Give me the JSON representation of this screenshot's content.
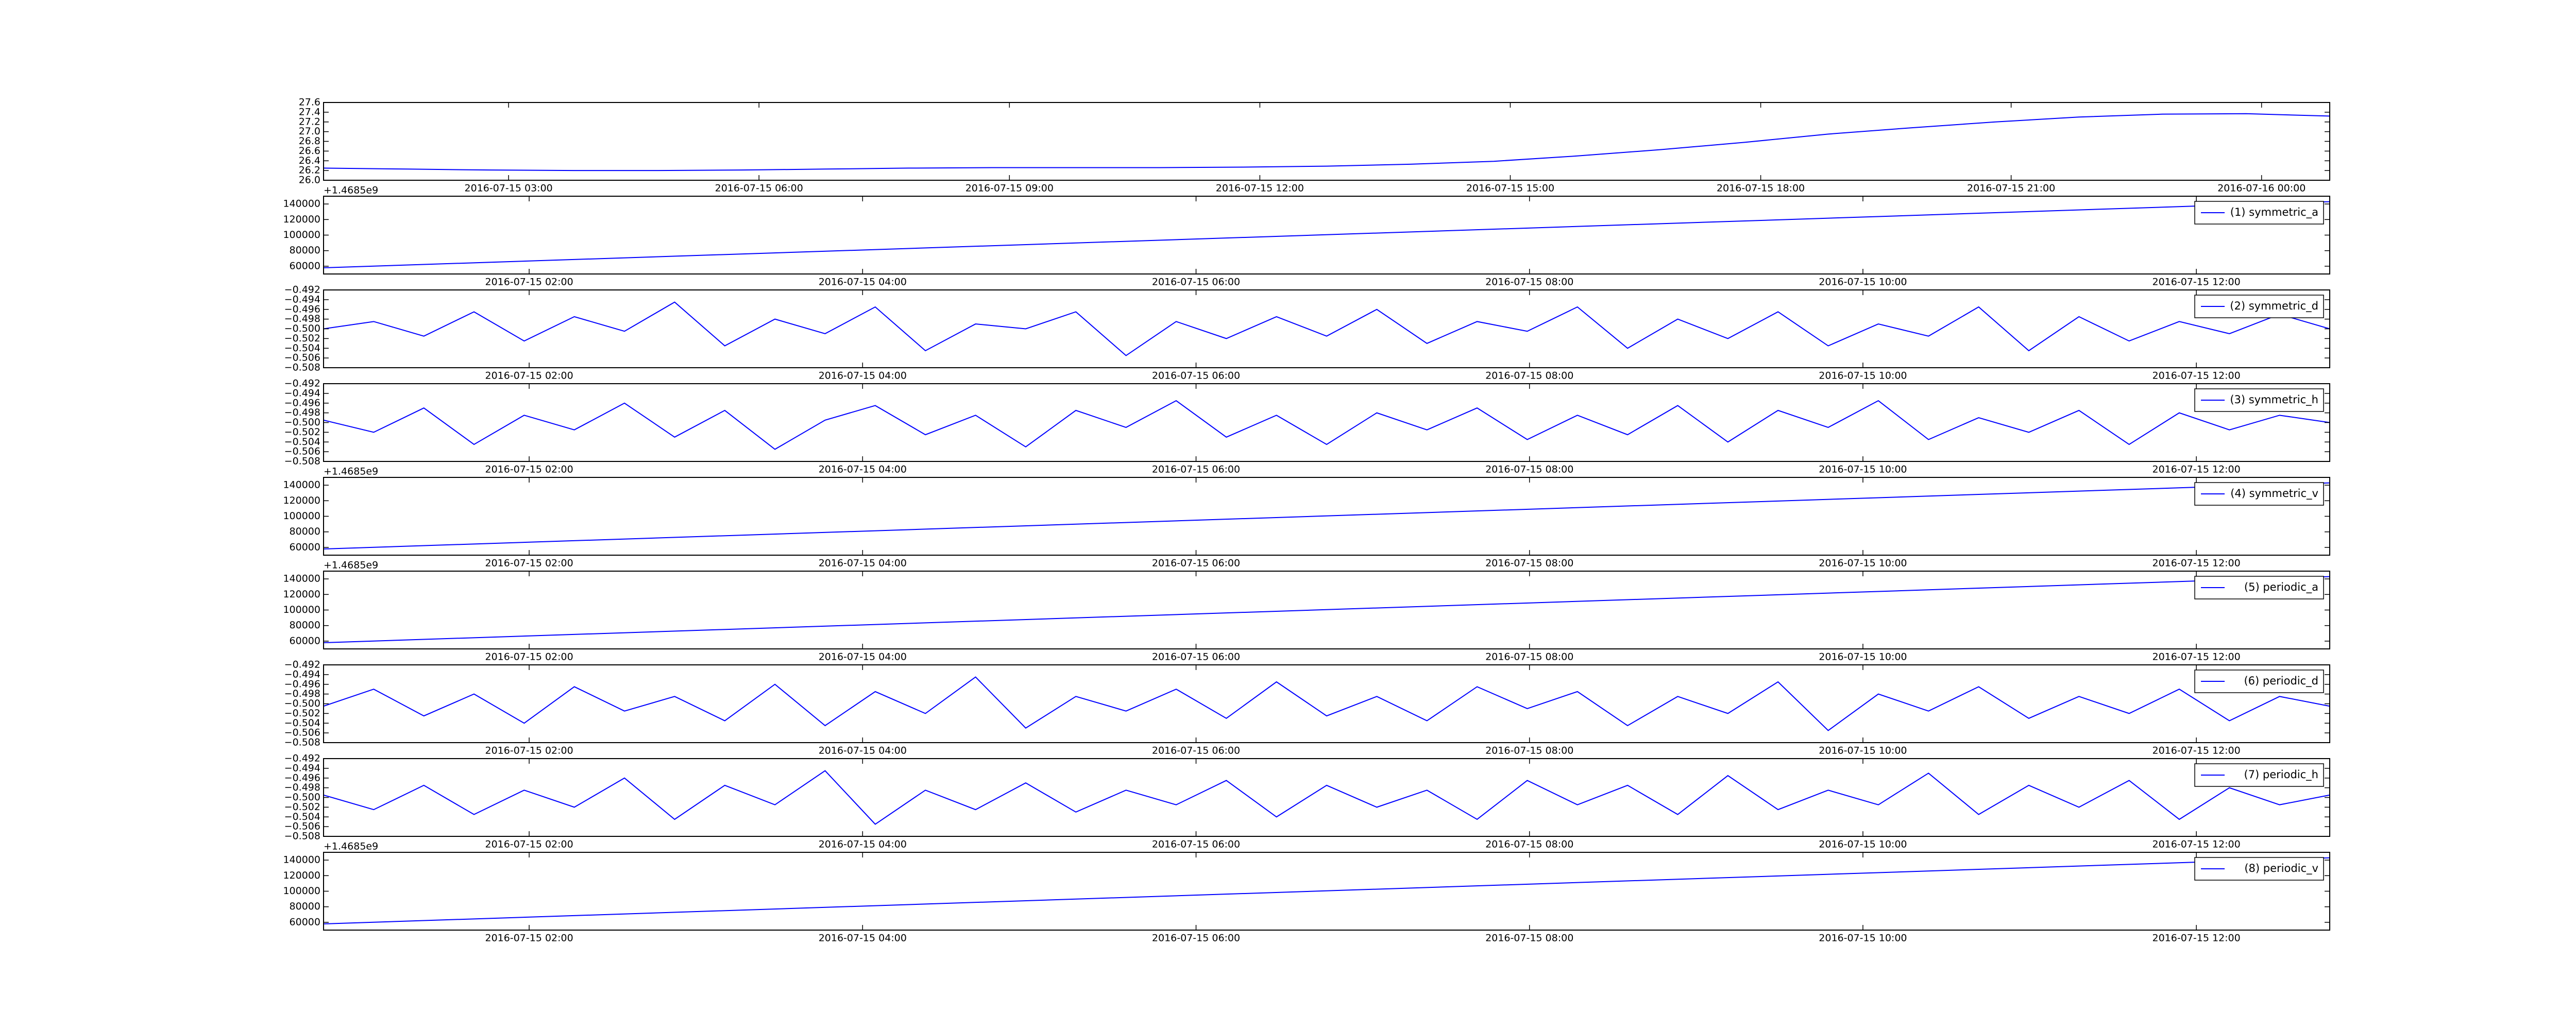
{
  "chart_data": [
    {
      "type": "line",
      "offset_text": "+1.4685e9",
      "x": [
        1468543620,
        1468547225,
        1468550830,
        1468554435,
        1468558040,
        1468561645,
        1468565250,
        1468568855,
        1468572460,
        1468576065,
        1468579670,
        1468583275,
        1468586880,
        1468590485,
        1468594090,
        1468597695,
        1468601300,
        1468604905,
        1468608510,
        1468612115,
        1468615720,
        1468619325,
        1468622930,
        1468626535,
        1468630140
      ],
      "series": [
        {
          "color": "#0000ff",
          "values": [
            26.25,
            26.23,
            26.21,
            26.2,
            26.2,
            26.21,
            26.23,
            26.25,
            26.26,
            26.26,
            26.26,
            26.27,
            26.29,
            26.33,
            26.39,
            26.5,
            26.63,
            26.78,
            26.95,
            27.08,
            27.2,
            27.3,
            27.36,
            27.37,
            27.32
          ]
        }
      ],
      "xlim": [
        1468543620,
        1468630140
      ],
      "xticks": [
        {
          "value": 1468551600,
          "label": "2016-07-15 03:00"
        },
        {
          "value": 1468562400,
          "label": "2016-07-15 06:00"
        },
        {
          "value": 1468573200,
          "label": "2016-07-15 09:00"
        },
        {
          "value": 1468584000,
          "label": "2016-07-15 12:00"
        },
        {
          "value": 1468594800,
          "label": "2016-07-15 15:00"
        },
        {
          "value": 1468605600,
          "label": "2016-07-15 18:00"
        },
        {
          "value": 1468616400,
          "label": "2016-07-15 21:00"
        },
        {
          "value": 1468627200,
          "label": "2016-07-16 00:00"
        }
      ],
      "ylim": [
        26.0,
        27.6
      ],
      "yticks": [
        {
          "value": 26.0,
          "label": "26.0"
        },
        26.2,
        26.4,
        26.6,
        26.8,
        {
          "value": 27.0,
          "label": "27.0"
        },
        27.2,
        27.4,
        27.6
      ]
    },
    {
      "type": "line",
      "legend": "upper right",
      "x": [
        1468543560,
        1468586880
      ],
      "series": [
        {
          "name": "(1) symmetric_a",
          "color": "#0000ff",
          "values": [
            58000,
            143000
          ]
        }
      ],
      "xlim": [
        1468543560,
        1468586880
      ],
      "xticks": [
        {
          "value": 1468548000,
          "label": "2016-07-15 02:00"
        },
        {
          "value": 1468555200,
          "label": "2016-07-15 04:00"
        },
        {
          "value": 1468562400,
          "label": "2016-07-15 06:00"
        },
        {
          "value": 1468569600,
          "label": "2016-07-15 08:00"
        },
        {
          "value": 1468576800,
          "label": "2016-07-15 10:00"
        },
        {
          "value": 1468584000,
          "label": "2016-07-15 12:00"
        }
      ],
      "ylim": [
        50000,
        150000
      ],
      "yticks": [
        60000,
        80000,
        100000,
        120000,
        140000
      ]
    },
    {
      "type": "line",
      "legend": "upper right",
      "x": [
        1468543560,
        1468544643,
        1468545726,
        1468546809,
        1468547892,
        1468548975,
        1468550058,
        1468551141,
        1468552224,
        1468553307,
        1468554390,
        1468555473,
        1468556556,
        1468557639,
        1468558722,
        1468559805,
        1468560888,
        1468561971,
        1468563054,
        1468564137,
        1468565220,
        1468566303,
        1468567386,
        1468568469,
        1468569552,
        1468570635,
        1468571718,
        1468572801,
        1468573884,
        1468574967,
        1468576050,
        1468577133,
        1468578216,
        1468579299,
        1468580382,
        1468581465,
        1468582548,
        1468583631,
        1468584714,
        1468585797,
        1468586880
      ],
      "series": [
        {
          "name": "(2) symmetric_d",
          "color": "#0000ff",
          "values": [
            -0.5,
            -0.4985,
            -0.5015,
            -0.4965,
            -0.5025,
            -0.4975,
            -0.5005,
            -0.4945,
            -0.5035,
            -0.498,
            -0.501,
            -0.4955,
            -0.5045,
            -0.499,
            -0.5,
            -0.4965,
            -0.5055,
            -0.4985,
            -0.502,
            -0.4975,
            -0.5015,
            -0.496,
            -0.503,
            -0.4985,
            -0.5005,
            -0.4955,
            -0.504,
            -0.498,
            -0.502,
            -0.4965,
            -0.5035,
            -0.499,
            -0.5015,
            -0.4955,
            -0.5045,
            -0.4975,
            -0.5025,
            -0.4985,
            -0.501,
            -0.497,
            -0.5
          ]
        }
      ],
      "xlim": [
        1468543560,
        1468586880
      ],
      "xticks": [
        {
          "value": 1468548000,
          "label": "2016-07-15 02:00"
        },
        {
          "value": 1468555200,
          "label": "2016-07-15 04:00"
        },
        {
          "value": 1468562400,
          "label": "2016-07-15 06:00"
        },
        {
          "value": 1468569600,
          "label": "2016-07-15 08:00"
        },
        {
          "value": 1468576800,
          "label": "2016-07-15 10:00"
        },
        {
          "value": 1468584000,
          "label": "2016-07-15 12:00"
        }
      ],
      "ylim": [
        -0.508,
        -0.492
      ],
      "yticks": [
        {
          "value": -0.508,
          "label": "−0.508"
        },
        {
          "value": -0.506,
          "label": "−0.506"
        },
        {
          "value": -0.504,
          "label": "−0.504"
        },
        {
          "value": -0.502,
          "label": "−0.502"
        },
        {
          "value": -0.5,
          "label": "−0.500"
        },
        {
          "value": -0.498,
          "label": "−0.498"
        },
        {
          "value": -0.496,
          "label": "−0.496"
        },
        {
          "value": -0.494,
          "label": "−0.494"
        },
        {
          "value": -0.492,
          "label": "−0.492"
        }
      ]
    },
    {
      "type": "line",
      "legend": "upper right",
      "offset_text": "+1.4685e9",
      "x": [
        1468543560,
        1468544643,
        1468545726,
        1468546809,
        1468547892,
        1468548975,
        1468550058,
        1468551141,
        1468552224,
        1468553307,
        1468554390,
        1468555473,
        1468556556,
        1468557639,
        1468558722,
        1468559805,
        1468560888,
        1468561971,
        1468563054,
        1468564137,
        1468565220,
        1468566303,
        1468567386,
        1468568469,
        1468569552,
        1468570635,
        1468571718,
        1468572801,
        1468573884,
        1468574967,
        1468576050,
        1468577133,
        1468578216,
        1468579299,
        1468580382,
        1468581465,
        1468582548,
        1468583631,
        1468584714,
        1468585797,
        1468586880
      ],
      "series": [
        {
          "name": "(3) symmetric_h",
          "color": "#0000ff",
          "values": [
            -0.4995,
            -0.502,
            -0.497,
            -0.5045,
            -0.4985,
            -0.5015,
            -0.496,
            -0.503,
            -0.4975,
            -0.5055,
            -0.4995,
            -0.4965,
            -0.5025,
            -0.4985,
            -0.505,
            -0.4975,
            -0.501,
            -0.4955,
            -0.503,
            -0.4985,
            -0.5045,
            -0.498,
            -0.5015,
            -0.497,
            -0.5035,
            -0.4985,
            -0.5025,
            -0.4965,
            -0.504,
            -0.4975,
            -0.501,
            -0.4955,
            -0.5035,
            -0.499,
            -0.502,
            -0.4975,
            -0.5045,
            -0.498,
            -0.5015,
            -0.4985,
            -0.5
          ]
        }
      ],
      "xlim": [
        1468543560,
        1468586880
      ],
      "xticks": [
        {
          "value": 1468548000,
          "label": "2016-07-15 02:00"
        },
        {
          "value": 1468555200,
          "label": "2016-07-15 04:00"
        },
        {
          "value": 1468562400,
          "label": "2016-07-15 06:00"
        },
        {
          "value": 1468569600,
          "label": "2016-07-15 08:00"
        },
        {
          "value": 1468576800,
          "label": "2016-07-15 10:00"
        },
        {
          "value": 1468584000,
          "label": "2016-07-15 12:00"
        }
      ],
      "ylim": [
        -0.508,
        -0.492
      ],
      "yticks": [
        {
          "value": -0.508,
          "label": "−0.508"
        },
        {
          "value": -0.506,
          "label": "−0.506"
        },
        {
          "value": -0.504,
          "label": "−0.504"
        },
        {
          "value": -0.502,
          "label": "−0.502"
        },
        {
          "value": -0.5,
          "label": "−0.500"
        },
        {
          "value": -0.498,
          "label": "−0.498"
        },
        {
          "value": -0.496,
          "label": "−0.496"
        },
        {
          "value": -0.494,
          "label": "−0.494"
        },
        {
          "value": -0.492,
          "label": "−0.492"
        }
      ]
    },
    {
      "type": "line",
      "legend": "upper right",
      "offset_text": "+1.4685e9",
      "x": [
        1468543560,
        1468586880
      ],
      "series": [
        {
          "name": "(4) symmetric_v",
          "color": "#0000ff",
          "values": [
            58000,
            143000
          ]
        }
      ],
      "xlim": [
        1468543560,
        1468586880
      ],
      "xticks": [
        {
          "value": 1468548000,
          "label": "2016-07-15 02:00"
        },
        {
          "value": 1468555200,
          "label": "2016-07-15 04:00"
        },
        {
          "value": 1468562400,
          "label": "2016-07-15 06:00"
        },
        {
          "value": 1468569600,
          "label": "2016-07-15 08:00"
        },
        {
          "value": 1468576800,
          "label": "2016-07-15 10:00"
        },
        {
          "value": 1468584000,
          "label": "2016-07-15 12:00"
        }
      ],
      "ylim": [
        50000,
        150000
      ],
      "yticks": [
        60000,
        80000,
        100000,
        120000,
        140000
      ]
    },
    {
      "type": "line",
      "legend": "upper right",
      "x": [
        1468543560,
        1468586880
      ],
      "series": [
        {
          "name": "(5) periodic_a",
          "color": "#0000ff",
          "values": [
            58000,
            143000
          ]
        }
      ],
      "xlim": [
        1468543560,
        1468586880
      ],
      "xticks": [
        {
          "value": 1468548000,
          "label": "2016-07-15 02:00"
        },
        {
          "value": 1468555200,
          "label": "2016-07-15 04:00"
        },
        {
          "value": 1468562400,
          "label": "2016-07-15 06:00"
        },
        {
          "value": 1468569600,
          "label": "2016-07-15 08:00"
        },
        {
          "value": 1468576800,
          "label": "2016-07-15 10:00"
        },
        {
          "value": 1468584000,
          "label": "2016-07-15 12:00"
        }
      ],
      "ylim": [
        50000,
        150000
      ],
      "yticks": [
        60000,
        80000,
        100000,
        120000,
        140000
      ]
    },
    {
      "type": "line",
      "legend": "upper right",
      "x": [
        1468543560,
        1468544643,
        1468545726,
        1468546809,
        1468547892,
        1468548975,
        1468550058,
        1468551141,
        1468552224,
        1468553307,
        1468554390,
        1468555473,
        1468556556,
        1468557639,
        1468558722,
        1468559805,
        1468560888,
        1468561971,
        1468563054,
        1468564137,
        1468565220,
        1468566303,
        1468567386,
        1468568469,
        1468569552,
        1468570635,
        1468571718,
        1468572801,
        1468573884,
        1468574967,
        1468576050,
        1468577133,
        1468578216,
        1468579299,
        1468580382,
        1468581465,
        1468582548,
        1468583631,
        1468584714,
        1468585797,
        1468586880
      ],
      "series": [
        {
          "name": "(6) periodic_d",
          "color": "#0000ff",
          "values": [
            -0.5005,
            -0.497,
            -0.5025,
            -0.498,
            -0.504,
            -0.4965,
            -0.5015,
            -0.4985,
            -0.5035,
            -0.496,
            -0.5045,
            -0.4975,
            -0.502,
            -0.4945,
            -0.505,
            -0.4985,
            -0.5015,
            -0.497,
            -0.503,
            -0.4955,
            -0.5025,
            -0.4985,
            -0.5035,
            -0.4965,
            -0.501,
            -0.4975,
            -0.5045,
            -0.4985,
            -0.502,
            -0.4955,
            -0.5055,
            -0.498,
            -0.5015,
            -0.4965,
            -0.503,
            -0.4985,
            -0.502,
            -0.497,
            -0.5035,
            -0.4985,
            -0.5005
          ]
        }
      ],
      "xlim": [
        1468543560,
        1468586880
      ],
      "xticks": [
        {
          "value": 1468548000,
          "label": "2016-07-15 02:00"
        },
        {
          "value": 1468555200,
          "label": "2016-07-15 04:00"
        },
        {
          "value": 1468562400,
          "label": "2016-07-15 06:00"
        },
        {
          "value": 1468569600,
          "label": "2016-07-15 08:00"
        },
        {
          "value": 1468576800,
          "label": "2016-07-15 10:00"
        },
        {
          "value": 1468584000,
          "label": "2016-07-15 12:00"
        }
      ],
      "ylim": [
        -0.508,
        -0.492
      ],
      "yticks": [
        {
          "value": -0.508,
          "label": "−0.508"
        },
        {
          "value": -0.506,
          "label": "−0.506"
        },
        {
          "value": -0.504,
          "label": "−0.504"
        },
        {
          "value": -0.502,
          "label": "−0.502"
        },
        {
          "value": -0.5,
          "label": "−0.500"
        },
        {
          "value": -0.498,
          "label": "−0.498"
        },
        {
          "value": -0.496,
          "label": "−0.496"
        },
        {
          "value": -0.494,
          "label": "−0.494"
        },
        {
          "value": -0.492,
          "label": "−0.492"
        }
      ]
    },
    {
      "type": "line",
      "legend": "upper right",
      "offset_text": "+1.4685e9",
      "x": [
        1468543560,
        1468544643,
        1468545726,
        1468546809,
        1468547892,
        1468548975,
        1468550058,
        1468551141,
        1468552224,
        1468553307,
        1468554390,
        1468555473,
        1468556556,
        1468557639,
        1468558722,
        1468559805,
        1468560888,
        1468561971,
        1468563054,
        1468564137,
        1468565220,
        1468566303,
        1468567386,
        1468568469,
        1468569552,
        1468570635,
        1468571718,
        1468572801,
        1468573884,
        1468574967,
        1468576050,
        1468577133,
        1468578216,
        1468579299,
        1468580382,
        1468581465,
        1468582548,
        1468583631,
        1468584714,
        1468585797,
        1468586880
      ],
      "series": [
        {
          "name": "(7) periodic_h",
          "color": "#0000ff",
          "values": [
            -0.4995,
            -0.5025,
            -0.4975,
            -0.5035,
            -0.4985,
            -0.502,
            -0.496,
            -0.5045,
            -0.4975,
            -0.5015,
            -0.4945,
            -0.5055,
            -0.4985,
            -0.5025,
            -0.497,
            -0.503,
            -0.4985,
            -0.5015,
            -0.4965,
            -0.504,
            -0.4975,
            -0.502,
            -0.4985,
            -0.5045,
            -0.4965,
            -0.5015,
            -0.4975,
            -0.5035,
            -0.4955,
            -0.5025,
            -0.4985,
            -0.5015,
            -0.495,
            -0.5035,
            -0.4975,
            -0.502,
            -0.4965,
            -0.5045,
            -0.498,
            -0.5015,
            -0.4995
          ]
        }
      ],
      "xlim": [
        1468543560,
        1468586880
      ],
      "xticks": [
        {
          "value": 1468548000,
          "label": "2016-07-15 02:00"
        },
        {
          "value": 1468555200,
          "label": "2016-07-15 04:00"
        },
        {
          "value": 1468562400,
          "label": "2016-07-15 06:00"
        },
        {
          "value": 1468569600,
          "label": "2016-07-15 08:00"
        },
        {
          "value": 1468576800,
          "label": "2016-07-15 10:00"
        },
        {
          "value": 1468584000,
          "label": "2016-07-15 12:00"
        }
      ],
      "ylim": [
        -0.508,
        -0.492
      ],
      "yticks": [
        {
          "value": -0.508,
          "label": "−0.508"
        },
        {
          "value": -0.506,
          "label": "−0.506"
        },
        {
          "value": -0.504,
          "label": "−0.504"
        },
        {
          "value": -0.502,
          "label": "−0.502"
        },
        {
          "value": -0.5,
          "label": "−0.500"
        },
        {
          "value": -0.498,
          "label": "−0.498"
        },
        {
          "value": -0.496,
          "label": "−0.496"
        },
        {
          "value": -0.494,
          "label": "−0.494"
        },
        {
          "value": -0.492,
          "label": "−0.492"
        }
      ]
    },
    {
      "type": "line",
      "legend": "upper right",
      "x": [
        1468543560,
        1468586880
      ],
      "series": [
        {
          "name": "(8) periodic_v",
          "color": "#0000ff",
          "values": [
            58000,
            143000
          ]
        }
      ],
      "xlim": [
        1468543560,
        1468586880
      ],
      "xticks": [
        {
          "value": 1468548000,
          "label": "2016-07-15 02:00"
        },
        {
          "value": 1468555200,
          "label": "2016-07-15 04:00"
        },
        {
          "value": 1468562400,
          "label": "2016-07-15 06:00"
        },
        {
          "value": 1468569600,
          "label": "2016-07-15 08:00"
        },
        {
          "value": 1468576800,
          "label": "2016-07-15 10:00"
        },
        {
          "value": 1468584000,
          "label": "2016-07-15 12:00"
        }
      ],
      "ylim": [
        50000,
        150000
      ],
      "yticks": [
        60000,
        80000,
        100000,
        120000,
        140000
      ]
    }
  ]
}
